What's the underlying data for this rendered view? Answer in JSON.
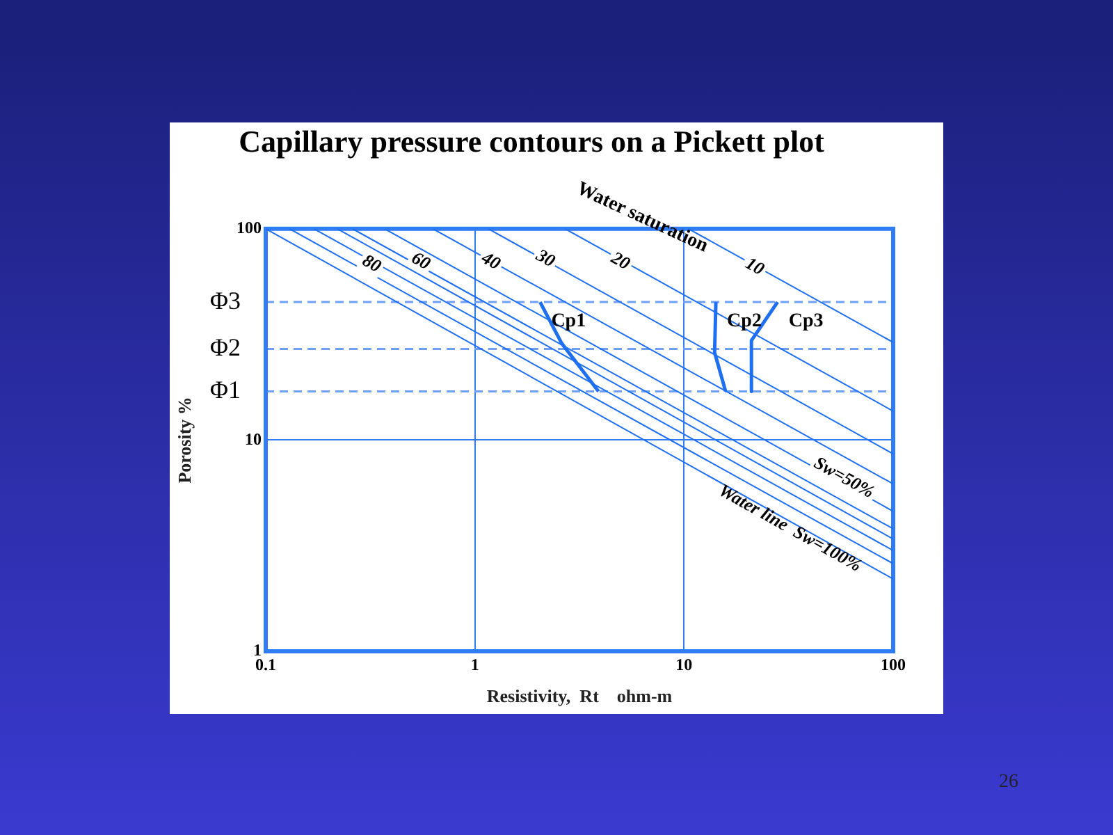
{
  "chart_data": {
    "type": "line",
    "title": "Capillary pressure contours on a Pickett plot",
    "xlabel": "Resistivity,  Rt    ohm-m",
    "ylabel": "Porosity %",
    "log": "xy",
    "xlim": [
      0.1,
      100
    ],
    "ylim": [
      1,
      100
    ],
    "xticks": [
      0.1,
      1,
      10,
      100
    ],
    "yticks": [
      1,
      10,
      100
    ],
    "grid": true,
    "legend": false,
    "marker": "none",
    "line_style": "solid",
    "series": [
      {
        "color": "#1f6ff2",
        "x": [
          0.1,
          100
        ],
        "values": [
          100,
          2.2
        ]
      },
      {
        "color": "#1f6ff2",
        "x": [
          0.13,
          100
        ],
        "values": [
          100,
          2.6
        ]
      },
      {
        "color": "#1f6ff2",
        "x": [
          0.17,
          100
        ],
        "values": [
          100,
          3.0
        ]
      },
      {
        "color": "#1f6ff2",
        "x": [
          0.22,
          100
        ],
        "values": [
          100,
          3.4
        ]
      },
      {
        "color": "#1f6ff2",
        "x": [
          0.26,
          100
        ],
        "values": [
          100,
          3.8
        ]
      },
      {
        "color": "#1f6ff2",
        "x": [
          0.37,
          100
        ],
        "values": [
          100,
          4.6
        ]
      },
      {
        "color": "#1f6ff2",
        "x": [
          0.63,
          100
        ],
        "values": [
          100,
          6.2
        ]
      },
      {
        "color": "#1f6ff2",
        "x": [
          1.16,
          100
        ],
        "values": [
          100,
          8.6
        ]
      },
      {
        "color": "#1f6ff2",
        "x": [
          2.7,
          100
        ],
        "values": [
          100,
          13.7
        ]
      },
      {
        "color": "#1f6ff2",
        "x": [
          10.5,
          100
        ],
        "values": [
          100,
          29
        ]
      },
      {
        "name": "Cp1",
        "color": "#1f6ff2",
        "x": [
          2.05,
          2.6,
          3.9
        ],
        "values": [
          45,
          28.7,
          17
        ]
      },
      {
        "name": "Cp2",
        "color": "#1f6ff2",
        "x": [
          14.2,
          14,
          15.8
        ],
        "values": [
          45,
          26,
          17
        ]
      },
      {
        "name": "Cp3",
        "color": "#1f6ff2",
        "x": [
          28,
          21,
          21
        ],
        "values": [
          45,
          29.6,
          17
        ]
      }
    ],
    "ref_lines": [
      {
        "axis": "y",
        "value": 45,
        "label": "Φ3",
        "color": "#6f9ff5",
        "line_style": "dashed"
      },
      {
        "axis": "y",
        "value": 27,
        "label": "Φ2",
        "color": "#6f9ff5",
        "line_style": "dashed"
      },
      {
        "axis": "y",
        "value": 17,
        "label": "Φ1",
        "color": "#6f9ff5",
        "line_style": "dashed"
      }
    ],
    "annotations": [
      "Water saturation",
      {
        "text": "80",
        "x": 0.32,
        "y": 68
      },
      {
        "text": "60",
        "x": 0.55,
        "y": 70
      },
      {
        "text": "40",
        "x": 1.19,
        "y": 70
      },
      {
        "text": "30",
        "x": 2.17,
        "y": 72
      },
      {
        "text": "20",
        "x": 4.95,
        "y": 70
      },
      {
        "text": "10",
        "x": 21.7,
        "y": 66
      },
      {
        "text": "Sw=50%",
        "x": 58,
        "y": 6.6
      },
      "Water line  Sw=100%",
      "26"
    ]
  }
}
